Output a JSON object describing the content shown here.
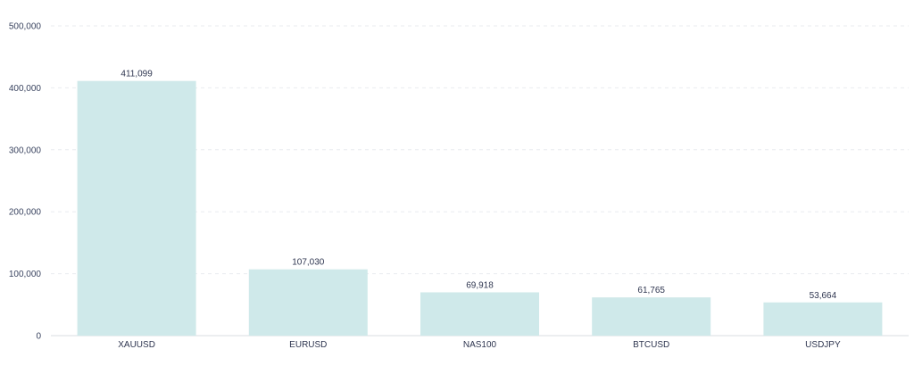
{
  "colors": {
    "bar": "#cfe9ea",
    "text": "#2f3650",
    "grid": "#e9ebef"
  },
  "chart_data": {
    "type": "bar",
    "title": "",
    "xlabel": "",
    "ylabel": "",
    "categories": [
      "XAUUSD",
      "EURUSD",
      "NAS100",
      "BTCUSD",
      "USDJPY"
    ],
    "values": [
      411099,
      107030,
      69918,
      61765,
      53664
    ],
    "value_labels": [
      "411,099",
      "107,030",
      "69,918",
      "61,765",
      "53,664"
    ],
    "ylim": [
      0,
      500000
    ],
    "yticks": [
      0,
      100000,
      200000,
      300000,
      400000,
      500000
    ],
    "ytick_labels": [
      "0",
      "100,000",
      "200,000",
      "300,000",
      "400,000",
      "500,000"
    ],
    "grid": true,
    "legend": "none"
  }
}
